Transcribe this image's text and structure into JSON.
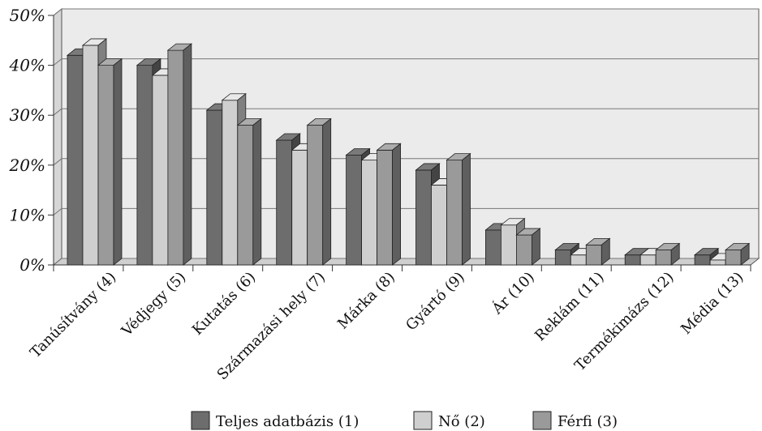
{
  "chart_data": {
    "type": "bar",
    "style": "3d-clustered-column",
    "categories": [
      "Tanúsítvány (4)",
      "Védjegy (5)",
      "Kutatás (6)",
      "Származási hely (7)",
      "Márka (8)",
      "Gyártó (9)",
      "Ár (10)",
      "Reklám (11)",
      "Termékimázs (12)",
      "Média (13)"
    ],
    "series": [
      {
        "name": "Teljes adatbázis (1)",
        "color": "#6d6d6d",
        "values": [
          42,
          40,
          31,
          25,
          22,
          19,
          7,
          3,
          2,
          2
        ]
      },
      {
        "name": "Nő (2)",
        "color": "#cfcfcf",
        "values": [
          44,
          38,
          33,
          23,
          21,
          16,
          8,
          2,
          2,
          1
        ]
      },
      {
        "name": "Férfi (3)",
        "color": "#9a9a9a",
        "values": [
          40,
          43,
          28,
          28,
          23,
          21,
          6,
          4,
          3,
          3
        ]
      }
    ],
    "yticks": [
      "0%",
      "10%",
      "20%",
      "30%",
      "40%",
      "50%"
    ],
    "ylim": [
      0,
      50
    ],
    "grid": true,
    "legend_position": "bottom",
    "title": "",
    "xlabel": "",
    "ylabel": ""
  }
}
